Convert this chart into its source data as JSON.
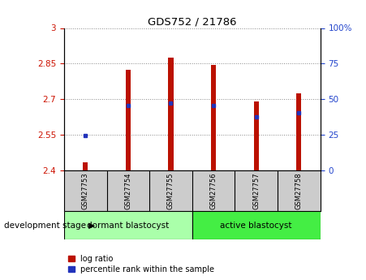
{
  "title": "GDS752 / 21786",
  "samples": [
    "GSM27753",
    "GSM27754",
    "GSM27755",
    "GSM27756",
    "GSM27757",
    "GSM27758"
  ],
  "bar_bottom": 2.4,
  "bar_tops": [
    2.435,
    2.825,
    2.875,
    2.845,
    2.69,
    2.725
  ],
  "percentile_values": [
    2.548,
    2.675,
    2.684,
    2.674,
    2.625,
    2.643
  ],
  "ylim": [
    2.4,
    3.0
  ],
  "yticks": [
    2.4,
    2.55,
    2.7,
    2.85,
    3.0
  ],
  "ytick_labels": [
    "2.4",
    "2.55",
    "2.7",
    "2.85",
    "3"
  ],
  "right_yticks": [
    0,
    25,
    50,
    75,
    100
  ],
  "right_ytick_labels": [
    "0",
    "25",
    "50",
    "75",
    "100%"
  ],
  "bar_color": "#bb1100",
  "dot_color": "#2233bb",
  "groups": [
    {
      "label": "dormant blastocyst",
      "indices": [
        0,
        1,
        2
      ],
      "color": "#aaffaa"
    },
    {
      "label": "active blastocyst",
      "indices": [
        3,
        4,
        5
      ],
      "color": "#44ee44"
    }
  ],
  "group_header": "development stage",
  "legend_items": [
    "log ratio",
    "percentile rank within the sample"
  ],
  "grid_color": "#888888",
  "tick_color_left": "#cc1100",
  "tick_color_right": "#2244cc",
  "bar_width": 0.12,
  "sample_box_color": "#cccccc",
  "plot_bg": "#ffffff"
}
